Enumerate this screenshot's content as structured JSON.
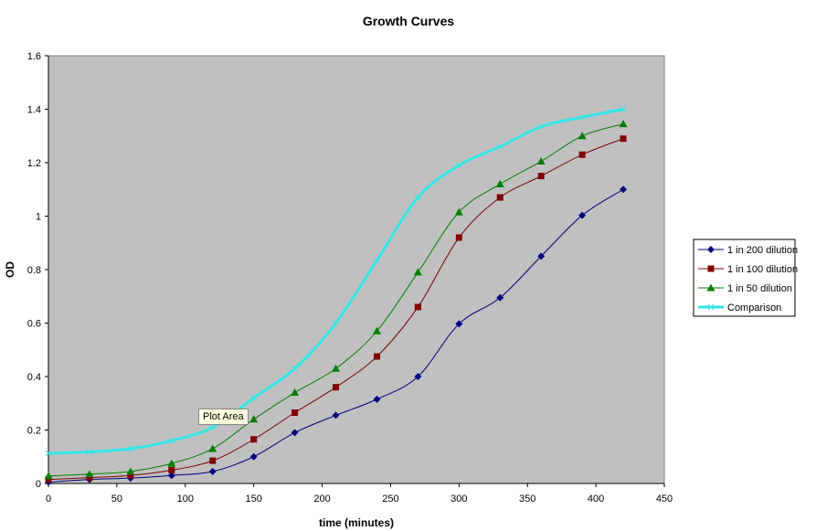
{
  "chart_data": {
    "type": "line",
    "title": "Growth Curves",
    "xlabel": "time (minutes)",
    "ylabel": "OD",
    "xlim": [
      0,
      450
    ],
    "ylim": [
      0,
      1.6
    ],
    "xticks": [
      0,
      50,
      100,
      150,
      200,
      250,
      300,
      350,
      400,
      450
    ],
    "yticks": [
      0,
      0.2,
      0.4,
      0.6,
      0.8,
      1,
      1.2,
      1.4,
      1.6
    ],
    "grid": false,
    "legend_position": "right",
    "plot_background": "#c0c0c0",
    "x": [
      0,
      30,
      60,
      90,
      120,
      150,
      180,
      210,
      240,
      270,
      300,
      330,
      360,
      390,
      420
    ],
    "series": [
      {
        "name": "1 in 200 dilution",
        "color": "#000080",
        "marker": "diamond",
        "values": [
          0.005,
          0.015,
          0.02,
          0.03,
          0.045,
          0.1,
          0.19,
          0.255,
          0.315,
          0.4,
          0.597,
          0.695,
          0.85,
          1.003,
          1.1
        ]
      },
      {
        "name": "1 in 100 dilution",
        "color": "#800000",
        "marker": "square",
        "values": [
          0.015,
          0.022,
          0.03,
          0.05,
          0.085,
          0.165,
          0.265,
          0.36,
          0.475,
          0.66,
          0.92,
          1.07,
          1.15,
          1.23,
          1.29
        ]
      },
      {
        "name": "1 in 50 dilution",
        "color": "#008000",
        "marker": "triangle",
        "values": [
          0.028,
          0.035,
          0.045,
          0.075,
          0.13,
          0.24,
          0.34,
          0.43,
          0.57,
          0.79,
          1.015,
          1.12,
          1.205,
          1.3,
          1.345
        ]
      },
      {
        "name": "Comparison",
        "color": "#33e6e6",
        "marker": "x",
        "values": [
          0.113,
          0.118,
          0.13,
          0.16,
          0.21,
          0.32,
          0.43,
          0.6,
          0.835,
          1.07,
          1.19,
          1.26,
          1.335,
          1.37,
          1.4
        ]
      }
    ]
  },
  "tooltip": "Plot Area"
}
